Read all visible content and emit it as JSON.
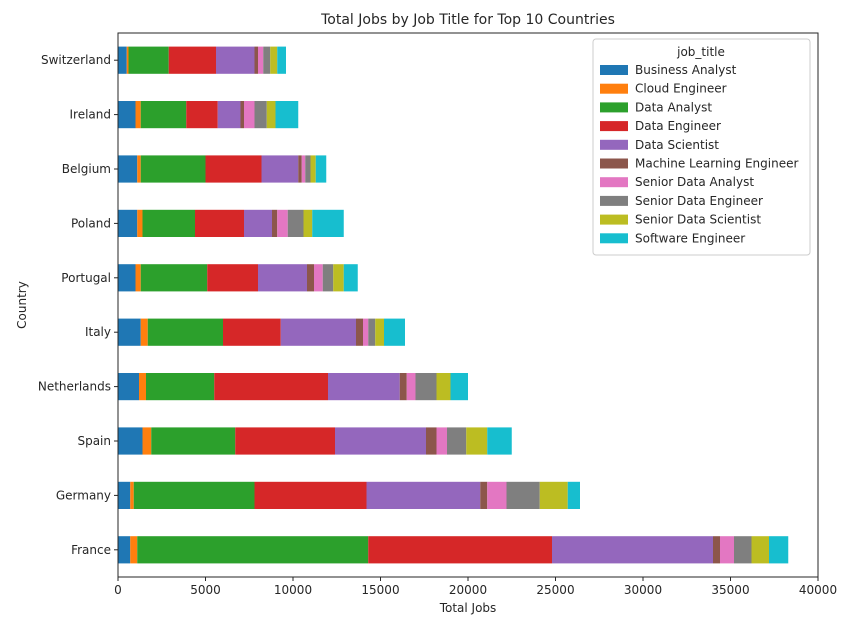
{
  "chart_data": {
    "type": "bar",
    "orientation": "horizontal",
    "stacked": true,
    "title": "Total Jobs by Job Title for Top 10 Countries",
    "xlabel": "Total Jobs",
    "ylabel": "Country",
    "xlim": [
      0,
      40000
    ],
    "xticks": [
      0,
      5000,
      10000,
      15000,
      20000,
      25000,
      30000,
      35000,
      40000
    ],
    "grid": false,
    "legend": {
      "title": "job_title",
      "placement": "top-right"
    },
    "categories": [
      "France",
      "Germany",
      "Spain",
      "Netherlands",
      "Italy",
      "Portugal",
      "Poland",
      "Belgium",
      "Ireland",
      "Switzerland"
    ],
    "series": [
      {
        "name": "Business Analyst",
        "color": "#1f77b4",
        "values": [
          700,
          700,
          1400,
          1200,
          1300,
          1000,
          1100,
          1100,
          1000,
          500
        ]
      },
      {
        "name": "Cloud Engineer",
        "color": "#ff7f0e",
        "values": [
          400,
          200,
          500,
          400,
          400,
          300,
          300,
          200,
          300,
          100
        ]
      },
      {
        "name": "Data Analyst",
        "color": "#2ca02c",
        "values": [
          13200,
          6900,
          4800,
          3900,
          4300,
          3800,
          3000,
          3700,
          2600,
          2300
        ]
      },
      {
        "name": "Data Engineer",
        "color": "#d62728",
        "values": [
          10500,
          6400,
          5700,
          6500,
          3300,
          2900,
          2800,
          3200,
          1800,
          2700
        ]
      },
      {
        "name": "Data Scientist",
        "color": "#9467bd",
        "values": [
          9200,
          6500,
          5200,
          4100,
          4300,
          2800,
          1600,
          2100,
          1300,
          2200
        ]
      },
      {
        "name": "Machine Learning Engineer",
        "color": "#8c564b",
        "values": [
          400,
          400,
          600,
          400,
          400,
          400,
          300,
          200,
          200,
          200
        ]
      },
      {
        "name": "Senior Data Analyst",
        "color": "#e377c2",
        "values": [
          800,
          1100,
          600,
          500,
          300,
          500,
          600,
          200,
          600,
          300
        ]
      },
      {
        "name": "Senior Data Engineer",
        "color": "#7f7f7f",
        "values": [
          1000,
          1900,
          1100,
          1200,
          400,
          600,
          900,
          300,
          700,
          400
        ]
      },
      {
        "name": "Senior Data Scientist",
        "color": "#bcbd22",
        "values": [
          1000,
          1600,
          1200,
          800,
          500,
          600,
          500,
          300,
          500,
          400
        ]
      },
      {
        "name": "Software Engineer",
        "color": "#17becf",
        "values": [
          1100,
          700,
          1400,
          1000,
          1200,
          800,
          1800,
          600,
          1300,
          500
        ]
      }
    ]
  }
}
